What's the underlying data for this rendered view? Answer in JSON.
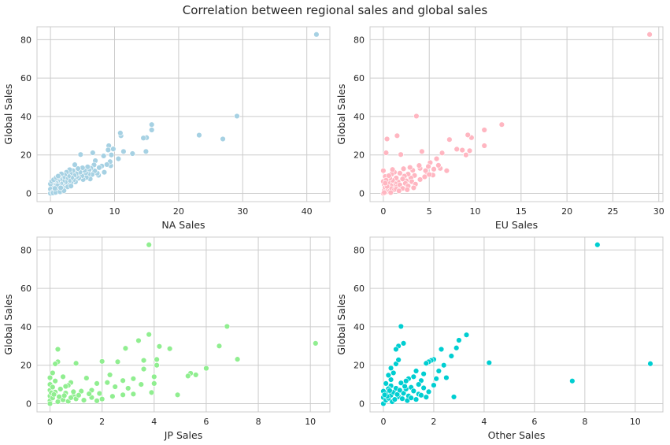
{
  "figure": {
    "title": "Correlation between regional sales and global sales"
  },
  "chart_data": [
    {
      "type": "scatter",
      "title": "",
      "xlabel": "NA Sales",
      "ylabel": "Global Sales",
      "color": "#a6d1e3",
      "xlim": [
        -2.1,
        43.6
      ],
      "ylim": [
        -4.3,
        86.7
      ],
      "xticks": [
        0,
        10,
        20,
        30,
        40
      ],
      "yticks": [
        0,
        20,
        40,
        60,
        80
      ],
      "grid": true,
      "points": [
        [
          41.5,
          82.7
        ],
        [
          29.1,
          40.2
        ],
        [
          26.9,
          28.3
        ],
        [
          23.2,
          30.3
        ],
        [
          15.8,
          35.8
        ],
        [
          15.8,
          33.0
        ],
        [
          15.0,
          29.0
        ],
        [
          14.5,
          28.8
        ],
        [
          14.9,
          21.8
        ],
        [
          12.8,
          20.7
        ],
        [
          11.4,
          21.8
        ],
        [
          11.0,
          30.0
        ],
        [
          10.9,
          31.4
        ],
        [
          10.6,
          18.0
        ],
        [
          9.8,
          23.1
        ],
        [
          9.5,
          20.0
        ],
        [
          9.1,
          24.8
        ],
        [
          9.0,
          22.6
        ],
        [
          9.4,
          14.4
        ],
        [
          9.3,
          16.5
        ],
        [
          8.8,
          15.0
        ],
        [
          8.4,
          11.0
        ],
        [
          8.3,
          19.5
        ],
        [
          8.0,
          14.2
        ],
        [
          7.6,
          13.4
        ],
        [
          7.5,
          9.4
        ],
        [
          7.3,
          10.5
        ],
        [
          7.0,
          17.0
        ],
        [
          6.9,
          11.7
        ],
        [
          6.8,
          14.8
        ],
        [
          6.6,
          21.1
        ],
        [
          6.5,
          9.8
        ],
        [
          6.3,
          13.1
        ],
        [
          6.2,
          7.5
        ],
        [
          6.0,
          12.2
        ],
        [
          5.9,
          10.0
        ],
        [
          5.8,
          13.8
        ],
        [
          5.6,
          8.3
        ],
        [
          5.5,
          10.7
        ],
        [
          5.3,
          11.9
        ],
        [
          5.1,
          7.2
        ],
        [
          5.0,
          13.3
        ],
        [
          4.9,
          9.1
        ],
        [
          4.7,
          20.2
        ],
        [
          4.6,
          11.0
        ],
        [
          4.4,
          7.9
        ],
        [
          4.3,
          12.9
        ],
        [
          4.1,
          8.8
        ],
        [
          4.0,
          10.2
        ],
        [
          3.9,
          6.0
        ],
        [
          3.8,
          14.9
        ],
        [
          3.7,
          9.3
        ],
        [
          3.6,
          7.0
        ],
        [
          3.5,
          11.8
        ],
        [
          3.3,
          8.1
        ],
        [
          3.2,
          5.3
        ],
        [
          3.1,
          10.5
        ],
        [
          3.0,
          12.3
        ],
        [
          2.9,
          6.5
        ],
        [
          2.8,
          8.9
        ],
        [
          2.6,
          4.6
        ],
        [
          2.5,
          11.0
        ],
        [
          2.4,
          7.3
        ],
        [
          2.3,
          5.8
        ],
        [
          2.2,
          9.6
        ],
        [
          2.1,
          3.6
        ],
        [
          2.0,
          8.0
        ],
        [
          1.9,
          6.2
        ],
        [
          1.8,
          4.3
        ],
        [
          1.7,
          10.1
        ],
        [
          1.6,
          5.2
        ],
        [
          1.5,
          7.5
        ],
        [
          1.4,
          3.2
        ],
        [
          1.3,
          8.6
        ],
        [
          1.2,
          4.8
        ],
        [
          1.1,
          6.4
        ],
        [
          1.0,
          2.4
        ],
        [
          0.9,
          5.6
        ],
        [
          0.8,
          3.7
        ],
        [
          0.7,
          6.9
        ],
        [
          0.6,
          1.9
        ],
        [
          0.5,
          4.5
        ],
        [
          0.4,
          2.8
        ],
        [
          0.3,
          5.9
        ],
        [
          0.2,
          1.4
        ],
        [
          0.1,
          3.3
        ],
        [
          0.0,
          0.0
        ],
        [
          0.0,
          4.9
        ],
        [
          0.0,
          2.2
        ],
        [
          0.3,
          0.6
        ],
        [
          0.6,
          0.9
        ],
        [
          1.0,
          1.2
        ],
        [
          1.4,
          1.6
        ],
        [
          1.8,
          2.1
        ],
        [
          2.3,
          2.7
        ],
        [
          2.7,
          3.4
        ],
        [
          3.2,
          3.8
        ],
        [
          0.2,
          6.3
        ],
        [
          0.5,
          7.1
        ],
        [
          0.9,
          8.2
        ],
        [
          1.2,
          9.0
        ],
        [
          0.4,
          0.2
        ],
        [
          0.8,
          0.5
        ],
        [
          1.5,
          0.8
        ],
        [
          2.1,
          1.4
        ],
        [
          1.1,
          3.9
        ],
        [
          0.7,
          2.6
        ],
        [
          1.6,
          2.9
        ]
      ]
    },
    {
      "type": "scatter",
      "title": "",
      "xlabel": "EU Sales",
      "ylabel": "Global Sales",
      "color": "#ffb6c1",
      "xlim": [
        -1.45,
        30.45
      ],
      "ylim": [
        -4.3,
        86.7
      ],
      "xticks": [
        0,
        5,
        10,
        15,
        20,
        25,
        30
      ],
      "yticks": [
        0,
        20,
        40,
        60,
        80
      ],
      "grid": true,
      "points": [
        [
          29.0,
          82.7
        ],
        [
          12.9,
          35.8
        ],
        [
          11.0,
          33.0
        ],
        [
          11.0,
          24.8
        ],
        [
          9.6,
          29.0
        ],
        [
          9.2,
          30.4
        ],
        [
          9.4,
          22.2
        ],
        [
          9.0,
          20.0
        ],
        [
          8.6,
          22.5
        ],
        [
          8.0,
          23.0
        ],
        [
          7.2,
          28.0
        ],
        [
          6.9,
          11.8
        ],
        [
          6.4,
          21.0
        ],
        [
          6.2,
          13.0
        ],
        [
          5.8,
          18.0
        ],
        [
          5.4,
          9.5
        ],
        [
          5.1,
          16.0
        ],
        [
          4.9,
          14.0
        ],
        [
          4.8,
          10.0
        ],
        [
          4.6,
          11.8
        ],
        [
          4.2,
          21.8
        ],
        [
          4.0,
          13.0
        ],
        [
          3.9,
          14.5
        ],
        [
          3.6,
          40.2
        ],
        [
          3.4,
          9.3
        ],
        [
          3.2,
          12.0
        ],
        [
          3.0,
          8.0
        ],
        [
          2.9,
          13.5
        ],
        [
          2.7,
          10.0
        ],
        [
          2.5,
          6.5
        ],
        [
          2.3,
          9.0
        ],
        [
          2.2,
          12.8
        ],
        [
          2.1,
          7.5
        ],
        [
          1.9,
          20.2
        ],
        [
          1.8,
          10.5
        ],
        [
          1.6,
          6.0
        ],
        [
          1.5,
          30.0
        ],
        [
          1.4,
          8.0
        ],
        [
          1.3,
          5.0
        ],
        [
          1.2,
          11.0
        ],
        [
          1.1,
          3.8
        ],
        [
          1.0,
          6.8
        ],
        [
          0.9,
          10.0
        ],
        [
          0.8,
          4.2
        ],
        [
          0.7,
          7.9
        ],
        [
          0.6,
          2.8
        ],
        [
          0.5,
          5.6
        ],
        [
          0.4,
          28.3
        ],
        [
          0.3,
          21.1
        ],
        [
          0.2,
          8.8
        ],
        [
          0.1,
          4.6
        ],
        [
          0.0,
          11.8
        ],
        [
          0.0,
          6.2
        ],
        [
          0.0,
          0.0
        ],
        [
          0.1,
          1.5
        ],
        [
          0.2,
          3.0
        ],
        [
          0.3,
          0.8
        ],
        [
          0.5,
          2.1
        ],
        [
          0.7,
          1.2
        ],
        [
          0.9,
          2.5
        ],
        [
          1.2,
          1.8
        ],
        [
          1.5,
          3.4
        ],
        [
          1.8,
          4.4
        ],
        [
          2.1,
          2.6
        ],
        [
          2.4,
          5.2
        ],
        [
          2.7,
          3.8
        ],
        [
          3.1,
          6.1
        ],
        [
          3.5,
          4.8
        ],
        [
          4.0,
          7.2
        ],
        [
          4.5,
          8.6
        ],
        [
          5.0,
          9.8
        ],
        [
          5.5,
          12.6
        ],
        [
          6.0,
          14.6
        ],
        [
          0.3,
          6.9
        ],
        [
          0.6,
          9.2
        ],
        [
          1.0,
          12.4
        ],
        [
          1.4,
          2.2
        ],
        [
          0.4,
          3.6
        ],
        [
          0.8,
          0.4
        ],
        [
          1.7,
          1.3
        ],
        [
          2.6,
          1.9
        ],
        [
          3.3,
          2.9
        ],
        [
          0.2,
          5.3
        ],
        [
          0.1,
          0.4
        ]
      ]
    },
    {
      "type": "scatter",
      "title": "",
      "xlabel": "JP Sales",
      "ylabel": "Global Sales",
      "color": "#90ee90",
      "xlim": [
        -0.5,
        10.75
      ],
      "ylim": [
        -4.3,
        86.7
      ],
      "xticks": [
        0,
        2,
        4,
        6,
        8,
        10
      ],
      "yticks": [
        0,
        20,
        40,
        60,
        80
      ],
      "grid": true,
      "points": [
        [
          3.8,
          82.7
        ],
        [
          10.2,
          31.4
        ],
        [
          7.2,
          23.1
        ],
        [
          6.8,
          40.2
        ],
        [
          6.5,
          30.0
        ],
        [
          6.0,
          18.4
        ],
        [
          5.6,
          15.0
        ],
        [
          5.4,
          15.8
        ],
        [
          5.3,
          14.4
        ],
        [
          4.9,
          4.6
        ],
        [
          4.6,
          28.6
        ],
        [
          4.2,
          29.8
        ],
        [
          4.1,
          23.0
        ],
        [
          4.1,
          20.0
        ],
        [
          4.0,
          14.0
        ],
        [
          4.0,
          10.5
        ],
        [
          3.9,
          5.8
        ],
        [
          3.8,
          36.0
        ],
        [
          3.6,
          22.5
        ],
        [
          3.6,
          18.0
        ],
        [
          3.5,
          10.0
        ],
        [
          3.4,
          32.8
        ],
        [
          3.2,
          13.0
        ],
        [
          3.0,
          8.0
        ],
        [
          2.9,
          28.8
        ],
        [
          2.8,
          12.0
        ],
        [
          2.6,
          21.8
        ],
        [
          2.5,
          8.8
        ],
        [
          2.3,
          15.0
        ],
        [
          2.2,
          11.0
        ],
        [
          2.0,
          22.0
        ],
        [
          1.9,
          5.3
        ],
        [
          1.8,
          10.5
        ],
        [
          1.6,
          7.0
        ],
        [
          1.4,
          13.3
        ],
        [
          1.2,
          6.5
        ],
        [
          1.0,
          21.0
        ],
        [
          0.9,
          4.0
        ],
        [
          0.8,
          11.0
        ],
        [
          0.7,
          9.5
        ],
        [
          0.6,
          5.5
        ],
        [
          0.5,
          14.0
        ],
        [
          0.4,
          2.8
        ],
        [
          0.3,
          21.8
        ],
        [
          0.3,
          28.3
        ],
        [
          0.2,
          20.7
        ],
        [
          0.1,
          16.0
        ],
        [
          0.0,
          13.5
        ],
        [
          0.0,
          10.0
        ],
        [
          0.0,
          7.0
        ],
        [
          0.0,
          4.0
        ],
        [
          0.0,
          1.5
        ],
        [
          0.0,
          0.0
        ],
        [
          0.1,
          3.0
        ],
        [
          0.2,
          6.0
        ],
        [
          0.3,
          1.0
        ],
        [
          0.5,
          2.0
        ],
        [
          0.7,
          1.2
        ],
        [
          1.0,
          2.5
        ],
        [
          1.3,
          1.8
        ],
        [
          1.6,
          3.2
        ],
        [
          2.0,
          2.4
        ],
        [
          2.4,
          3.8
        ],
        [
          2.8,
          4.6
        ],
        [
          3.2,
          5.0
        ],
        [
          0.1,
          8.6
        ],
        [
          0.2,
          11.8
        ],
        [
          0.4,
          7.6
        ],
        [
          0.6,
          9.0
        ],
        [
          0.9,
          6.2
        ],
        [
          1.1,
          4.4
        ],
        [
          1.5,
          5.1
        ],
        [
          0.05,
          5.6
        ],
        [
          0.15,
          4.8
        ],
        [
          0.35,
          3.6
        ],
        [
          0.55,
          4.2
        ],
        [
          0.8,
          3.1
        ],
        [
          1.8,
          1.5
        ]
      ]
    },
    {
      "type": "scatter",
      "title": "",
      "xlabel": "Other Sales",
      "ylabel": "Global Sales",
      "color": "#00ced1",
      "xlim": [
        -0.53,
        11.1
      ],
      "ylim": [
        -4.3,
        86.7
      ],
      "xticks": [
        0,
        2,
        4,
        6,
        8,
        10
      ],
      "yticks": [
        0,
        20,
        40,
        60,
        80
      ],
      "grid": true,
      "points": [
        [
          8.5,
          82.7
        ],
        [
          10.6,
          20.8
        ],
        [
          7.5,
          11.8
        ],
        [
          4.2,
          21.3
        ],
        [
          3.3,
          35.8
        ],
        [
          3.0,
          33.0
        ],
        [
          2.9,
          29.0
        ],
        [
          2.8,
          3.5
        ],
        [
          2.7,
          24.8
        ],
        [
          2.5,
          13.5
        ],
        [
          2.4,
          20.0
        ],
        [
          2.3,
          28.3
        ],
        [
          2.2,
          17.0
        ],
        [
          2.1,
          13.0
        ],
        [
          2.0,
          23.0
        ],
        [
          1.9,
          22.5
        ],
        [
          1.8,
          21.8
        ],
        [
          1.7,
          21.0
        ],
        [
          1.6,
          15.5
        ],
        [
          1.5,
          12.0
        ],
        [
          1.4,
          10.0
        ],
        [
          1.3,
          17.0
        ],
        [
          1.2,
          14.0
        ],
        [
          1.1,
          8.5
        ],
        [
          1.0,
          13.0
        ],
        [
          0.9,
          11.8
        ],
        [
          0.8,
          31.4
        ],
        [
          0.7,
          40.2
        ],
        [
          0.6,
          30.0
        ],
        [
          0.5,
          28.3
        ],
        [
          0.5,
          20.7
        ],
        [
          0.4,
          16.0
        ],
        [
          0.3,
          12.5
        ],
        [
          0.3,
          9.3
        ],
        [
          0.2,
          14.8
        ],
        [
          0.2,
          7.8
        ],
        [
          0.1,
          10.5
        ],
        [
          0.1,
          5.6
        ],
        [
          0.0,
          3.2
        ],
        [
          0.0,
          0.0
        ],
        [
          0.0,
          6.5
        ],
        [
          0.1,
          1.8
        ],
        [
          0.2,
          2.8
        ],
        [
          0.3,
          4.4
        ],
        [
          0.4,
          6.0
        ],
        [
          0.5,
          8.0
        ],
        [
          0.6,
          3.6
        ],
        [
          0.7,
          10.8
        ],
        [
          0.8,
          5.4
        ],
        [
          0.9,
          7.6
        ],
        [
          1.0,
          4.0
        ],
        [
          1.2,
          6.6
        ],
        [
          1.4,
          5.0
        ],
        [
          1.6,
          8.2
        ],
        [
          1.8,
          6.2
        ],
        [
          2.0,
          9.6
        ],
        [
          0.15,
          3.8
        ],
        [
          0.25,
          6.8
        ],
        [
          0.35,
          1.0
        ],
        [
          0.45,
          2.2
        ],
        [
          0.55,
          4.8
        ],
        [
          0.65,
          7.0
        ],
        [
          0.75,
          2.6
        ],
        [
          0.85,
          9.0
        ],
        [
          0.95,
          1.6
        ],
        [
          1.1,
          3.0
        ],
        [
          1.3,
          2.2
        ],
        [
          1.5,
          4.4
        ],
        [
          1.7,
          3.4
        ],
        [
          0.05,
          4.6
        ],
        [
          0.3,
          18.5
        ],
        [
          0.6,
          22.8
        ]
      ]
    }
  ]
}
